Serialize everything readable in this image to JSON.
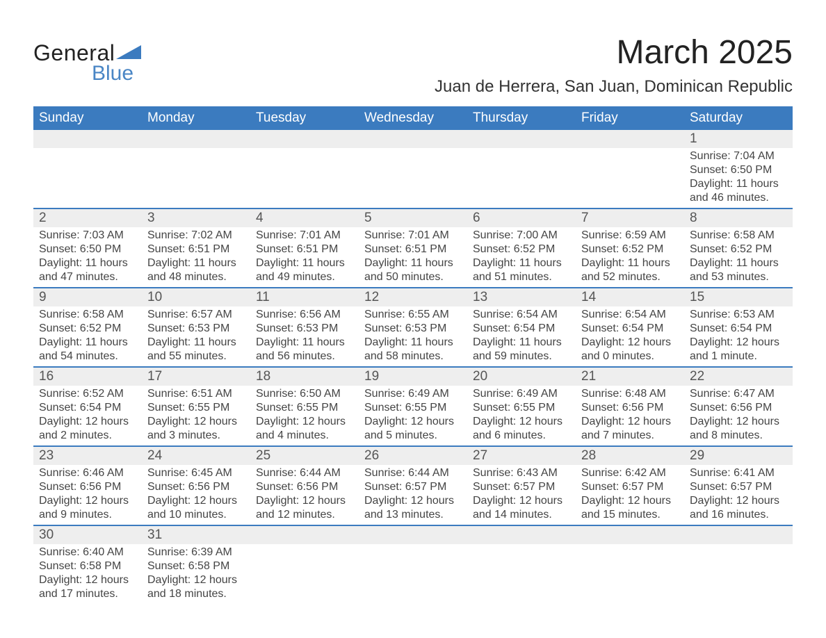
{
  "brand": {
    "name1": "General",
    "name2": "Blue",
    "logo_color": "#3b7bbf"
  },
  "title": "March 2025",
  "location": "Juan de Herrera, San Juan, Dominican Republic",
  "colors": {
    "header_blue": "#3b7bbf",
    "accent_blue": "#4a86c5",
    "row_alt": "#eeeeee",
    "divider": "#3b7bbf",
    "text": "#2f2f2f",
    "background": "#ffffff"
  },
  "typography": {
    "title_fontsize": 48,
    "location_fontsize": 24,
    "header_fontsize": 19,
    "daynum_fontsize": 19,
    "body_fontsize": 16,
    "font_family": "Arial"
  },
  "layout": {
    "columns": 7,
    "rows": 6,
    "start_day_index": 6
  },
  "day_headers": [
    "Sunday",
    "Monday",
    "Tuesday",
    "Wednesday",
    "Thursday",
    "Friday",
    "Saturday"
  ],
  "field_labels": {
    "sunrise": "Sunrise:",
    "sunset": "Sunset:",
    "daylight": "Daylight:"
  },
  "days": [
    {
      "n": 1,
      "sunrise": "7:04 AM",
      "sunset": "6:50 PM",
      "daylight": "11 hours and 46 minutes."
    },
    {
      "n": 2,
      "sunrise": "7:03 AM",
      "sunset": "6:50 PM",
      "daylight": "11 hours and 47 minutes."
    },
    {
      "n": 3,
      "sunrise": "7:02 AM",
      "sunset": "6:51 PM",
      "daylight": "11 hours and 48 minutes."
    },
    {
      "n": 4,
      "sunrise": "7:01 AM",
      "sunset": "6:51 PM",
      "daylight": "11 hours and 49 minutes."
    },
    {
      "n": 5,
      "sunrise": "7:01 AM",
      "sunset": "6:51 PM",
      "daylight": "11 hours and 50 minutes."
    },
    {
      "n": 6,
      "sunrise": "7:00 AM",
      "sunset": "6:52 PM",
      "daylight": "11 hours and 51 minutes."
    },
    {
      "n": 7,
      "sunrise": "6:59 AM",
      "sunset": "6:52 PM",
      "daylight": "11 hours and 52 minutes."
    },
    {
      "n": 8,
      "sunrise": "6:58 AM",
      "sunset": "6:52 PM",
      "daylight": "11 hours and 53 minutes."
    },
    {
      "n": 9,
      "sunrise": "6:58 AM",
      "sunset": "6:52 PM",
      "daylight": "11 hours and 54 minutes."
    },
    {
      "n": 10,
      "sunrise": "6:57 AM",
      "sunset": "6:53 PM",
      "daylight": "11 hours and 55 minutes."
    },
    {
      "n": 11,
      "sunrise": "6:56 AM",
      "sunset": "6:53 PM",
      "daylight": "11 hours and 56 minutes."
    },
    {
      "n": 12,
      "sunrise": "6:55 AM",
      "sunset": "6:53 PM",
      "daylight": "11 hours and 58 minutes."
    },
    {
      "n": 13,
      "sunrise": "6:54 AM",
      "sunset": "6:54 PM",
      "daylight": "11 hours and 59 minutes."
    },
    {
      "n": 14,
      "sunrise": "6:54 AM",
      "sunset": "6:54 PM",
      "daylight": "12 hours and 0 minutes."
    },
    {
      "n": 15,
      "sunrise": "6:53 AM",
      "sunset": "6:54 PM",
      "daylight": "12 hours and 1 minute."
    },
    {
      "n": 16,
      "sunrise": "6:52 AM",
      "sunset": "6:54 PM",
      "daylight": "12 hours and 2 minutes."
    },
    {
      "n": 17,
      "sunrise": "6:51 AM",
      "sunset": "6:55 PM",
      "daylight": "12 hours and 3 minutes."
    },
    {
      "n": 18,
      "sunrise": "6:50 AM",
      "sunset": "6:55 PM",
      "daylight": "12 hours and 4 minutes."
    },
    {
      "n": 19,
      "sunrise": "6:49 AM",
      "sunset": "6:55 PM",
      "daylight": "12 hours and 5 minutes."
    },
    {
      "n": 20,
      "sunrise": "6:49 AM",
      "sunset": "6:55 PM",
      "daylight": "12 hours and 6 minutes."
    },
    {
      "n": 21,
      "sunrise": "6:48 AM",
      "sunset": "6:56 PM",
      "daylight": "12 hours and 7 minutes."
    },
    {
      "n": 22,
      "sunrise": "6:47 AM",
      "sunset": "6:56 PM",
      "daylight": "12 hours and 8 minutes."
    },
    {
      "n": 23,
      "sunrise": "6:46 AM",
      "sunset": "6:56 PM",
      "daylight": "12 hours and 9 minutes."
    },
    {
      "n": 24,
      "sunrise": "6:45 AM",
      "sunset": "6:56 PM",
      "daylight": "12 hours and 10 minutes."
    },
    {
      "n": 25,
      "sunrise": "6:44 AM",
      "sunset": "6:56 PM",
      "daylight": "12 hours and 12 minutes."
    },
    {
      "n": 26,
      "sunrise": "6:44 AM",
      "sunset": "6:57 PM",
      "daylight": "12 hours and 13 minutes."
    },
    {
      "n": 27,
      "sunrise": "6:43 AM",
      "sunset": "6:57 PM",
      "daylight": "12 hours and 14 minutes."
    },
    {
      "n": 28,
      "sunrise": "6:42 AM",
      "sunset": "6:57 PM",
      "daylight": "12 hours and 15 minutes."
    },
    {
      "n": 29,
      "sunrise": "6:41 AM",
      "sunset": "6:57 PM",
      "daylight": "12 hours and 16 minutes."
    },
    {
      "n": 30,
      "sunrise": "6:40 AM",
      "sunset": "6:58 PM",
      "daylight": "12 hours and 17 minutes."
    },
    {
      "n": 31,
      "sunrise": "6:39 AM",
      "sunset": "6:58 PM",
      "daylight": "12 hours and 18 minutes."
    }
  ]
}
